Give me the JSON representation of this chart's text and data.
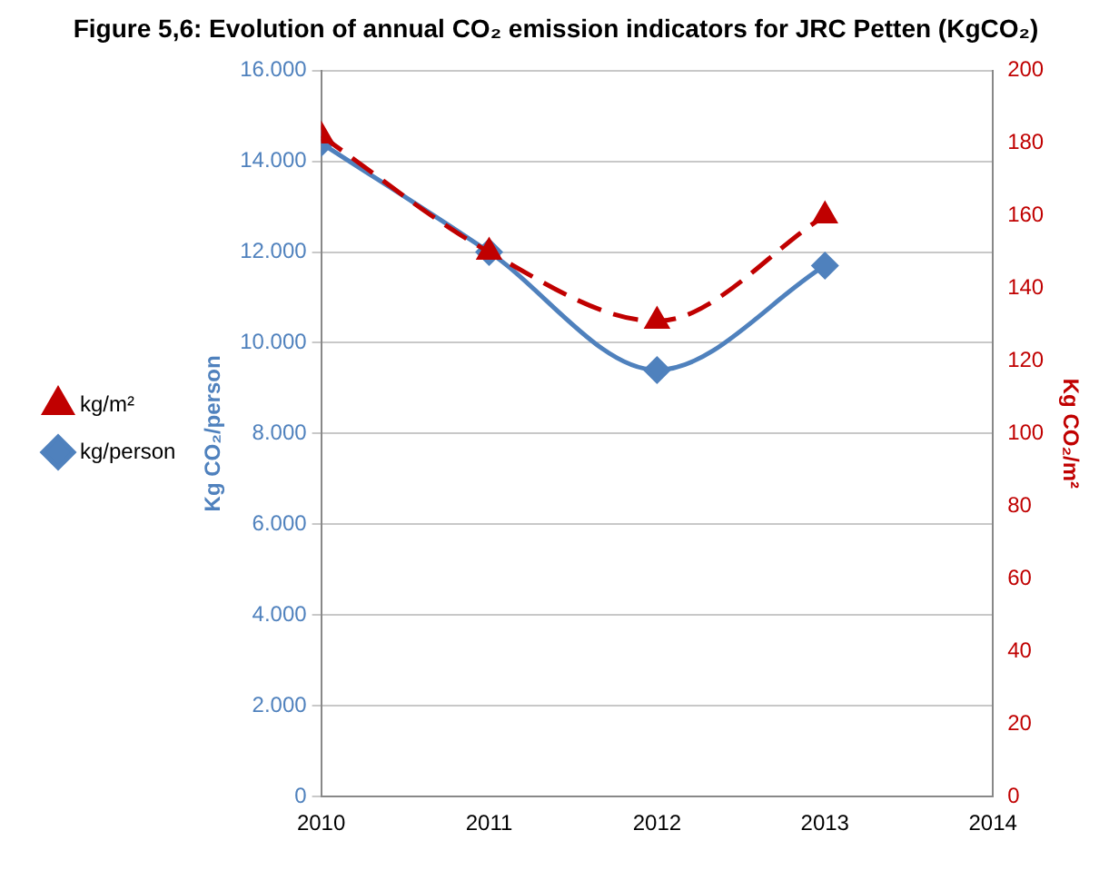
{
  "chart_data": {
    "type": "line",
    "title": "Figure 5,6: Evolution of annual CO₂ emission indicators for JRC Petten (KgCO₂)",
    "ylabel": "Kg CO₂/person",
    "y2label": "Kg CO₂/m²",
    "x": [
      2010,
      2011,
      2012,
      2013
    ],
    "series": [
      {
        "name": "kg/person",
        "color": "#4f81bd",
        "values": [
          14400,
          12000,
          9400,
          11700
        ],
        "marker": "diamond",
        "line_style": "solid"
      },
      {
        "name": "kg/m²",
        "color": "#c00000",
        "values": [
          182,
          150,
          131,
          160
        ],
        "axis": "y2",
        "marker": "triangle",
        "line_style": "dashed"
      }
    ],
    "xlim": [
      2010,
      2014
    ],
    "xticks": [
      2010,
      2011,
      2012,
      2013,
      2014
    ],
    "ylim": [
      0,
      16000
    ],
    "yticks": [
      0,
      {
        "value": 2000,
        "label": "2.000"
      },
      {
        "value": 4000,
        "label": "4.000"
      },
      {
        "value": 6000,
        "label": "6.000"
      },
      {
        "value": 8000,
        "label": "8.000"
      },
      {
        "value": 10000,
        "label": "10.000"
      },
      {
        "value": 12000,
        "label": "12.000"
      },
      {
        "value": 14000,
        "label": "14.000"
      },
      {
        "value": 16000,
        "label": "16.000"
      }
    ],
    "y2lim": [
      0,
      200
    ],
    "y2ticks": [
      0,
      20,
      40,
      60,
      80,
      100,
      120,
      140,
      160,
      180,
      200
    ],
    "grid": "y",
    "legend": "left"
  }
}
